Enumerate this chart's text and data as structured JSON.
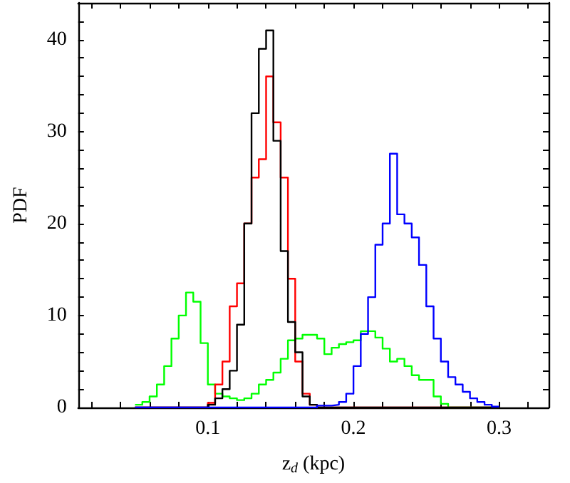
{
  "chart_data": {
    "type": "histogram",
    "xlabel": "z$_{d}$ (kpc)",
    "ylabel": "PDF",
    "bins": [
      0.05,
      0.055,
      0.06,
      0.065,
      0.07,
      0.075,
      0.08,
      0.085,
      0.09,
      0.095,
      0.1,
      0.105,
      0.11,
      0.115,
      0.12,
      0.125,
      0.13,
      0.135,
      0.14,
      0.145,
      0.15,
      0.155,
      0.16,
      0.165,
      0.17,
      0.175,
      0.18,
      0.185,
      0.19,
      0.195,
      0.2,
      0.205,
      0.21,
      0.215,
      0.22,
      0.225,
      0.23,
      0.235,
      0.24,
      0.245,
      0.25,
      0.255,
      0.26,
      0.265,
      0.27,
      0.275,
      0.28,
      0.285,
      0.29,
      0.295,
      0.3
    ],
    "series": [
      {
        "color": "#00ff00",
        "values": [
          0.3,
          0.6,
          1.2,
          2.5,
          4.5,
          7.5,
          10,
          12.5,
          11.5,
          7,
          2.5,
          1.5,
          1.2,
          1,
          0.8,
          1,
          1.5,
          2.5,
          3,
          3.8,
          5.3,
          7.3,
          7.5,
          7.9,
          7.9,
          7.5,
          5.8,
          6.5,
          6.9,
          7.1,
          7.3,
          8.3,
          8.3,
          7.6,
          6.4,
          5,
          5.3,
          4.5,
          3.5,
          3,
          3,
          1.2,
          0.4,
          0,
          0,
          0,
          0,
          0,
          0,
          0
        ]
      },
      {
        "color": "#ff0000",
        "values": [
          0,
          0,
          0,
          0,
          0,
          0,
          0,
          0,
          0,
          0,
          0.5,
          2.5,
          5,
          11,
          13.5,
          20,
          25,
          27,
          36,
          31,
          25,
          14,
          5,
          1.5,
          0.3,
          0,
          0,
          0,
          0,
          0,
          0,
          0,
          0,
          0,
          0,
          0,
          0,
          0,
          0,
          0,
          0,
          0,
          0,
          0,
          0,
          0,
          0,
          0,
          0,
          0
        ]
      },
      {
        "color": "#000000",
        "values": [
          0,
          0,
          0,
          0,
          0,
          0,
          0,
          0,
          0,
          0,
          0.3,
          1,
          2,
          4,
          9,
          20,
          32,
          39,
          41,
          29,
          17,
          9.3,
          6,
          1.2,
          0.3,
          0,
          0,
          0,
          0,
          0,
          0,
          0,
          0,
          0,
          0,
          0,
          0,
          0,
          0,
          0,
          0,
          0,
          0,
          0,
          0,
          0,
          0,
          0,
          0,
          0
        ]
      },
      {
        "color": "#0000ff",
        "values": [
          0,
          0,
          0,
          0,
          0,
          0,
          0,
          0,
          0,
          0,
          0,
          0,
          0,
          0,
          0,
          0,
          0,
          0,
          0,
          0,
          0,
          0,
          0,
          0,
          0,
          0.2,
          0.2,
          0.3,
          0.6,
          1.5,
          4.5,
          8,
          12,
          17.7,
          20,
          27.6,
          21,
          20,
          18.5,
          15.5,
          11,
          7.5,
          5,
          3.3,
          2.5,
          1.7,
          1,
          0.6,
          0.3,
          0.1
        ]
      }
    ],
    "xlim": [
      0.011,
      0.334
    ],
    "xticks": [
      {
        "value": 0.02,
        "label": null
      },
      {
        "value": 0.04,
        "label": null
      },
      {
        "value": 0.06,
        "label": null
      },
      {
        "value": 0.08,
        "label": null
      },
      0.1,
      {
        "value": 0.12,
        "label": null
      },
      {
        "value": 0.14,
        "label": null
      },
      {
        "value": 0.16,
        "label": null
      },
      {
        "value": 0.18,
        "label": null
      },
      0.2,
      {
        "value": 0.22,
        "label": null
      },
      {
        "value": 0.24,
        "label": null
      },
      {
        "value": 0.26,
        "label": null
      },
      {
        "value": 0.28,
        "label": null
      },
      0.3,
      {
        "value": 0.32,
        "label": null
      }
    ],
    "ylim": [
      0,
      44
    ],
    "yticks": [
      0,
      {
        "value": 2,
        "label": null
      },
      {
        "value": 4,
        "label": null
      },
      {
        "value": 6,
        "label": null
      },
      {
        "value": 8,
        "label": null
      },
      10,
      {
        "value": 12,
        "label": null
      },
      {
        "value": 14,
        "label": null
      },
      {
        "value": 16,
        "label": null
      },
      {
        "value": 18,
        "label": null
      },
      20,
      {
        "value": 22,
        "label": null
      },
      {
        "value": 24,
        "label": null
      },
      {
        "value": 26,
        "label": null
      },
      {
        "value": 28,
        "label": null
      },
      30,
      {
        "value": 32,
        "label": null
      },
      {
        "value": 34,
        "label": null
      },
      {
        "value": 36,
        "label": null
      },
      {
        "value": 38,
        "label": null
      },
      40,
      {
        "value": 42,
        "label": null
      }
    ],
    "tick_labels": true
  }
}
